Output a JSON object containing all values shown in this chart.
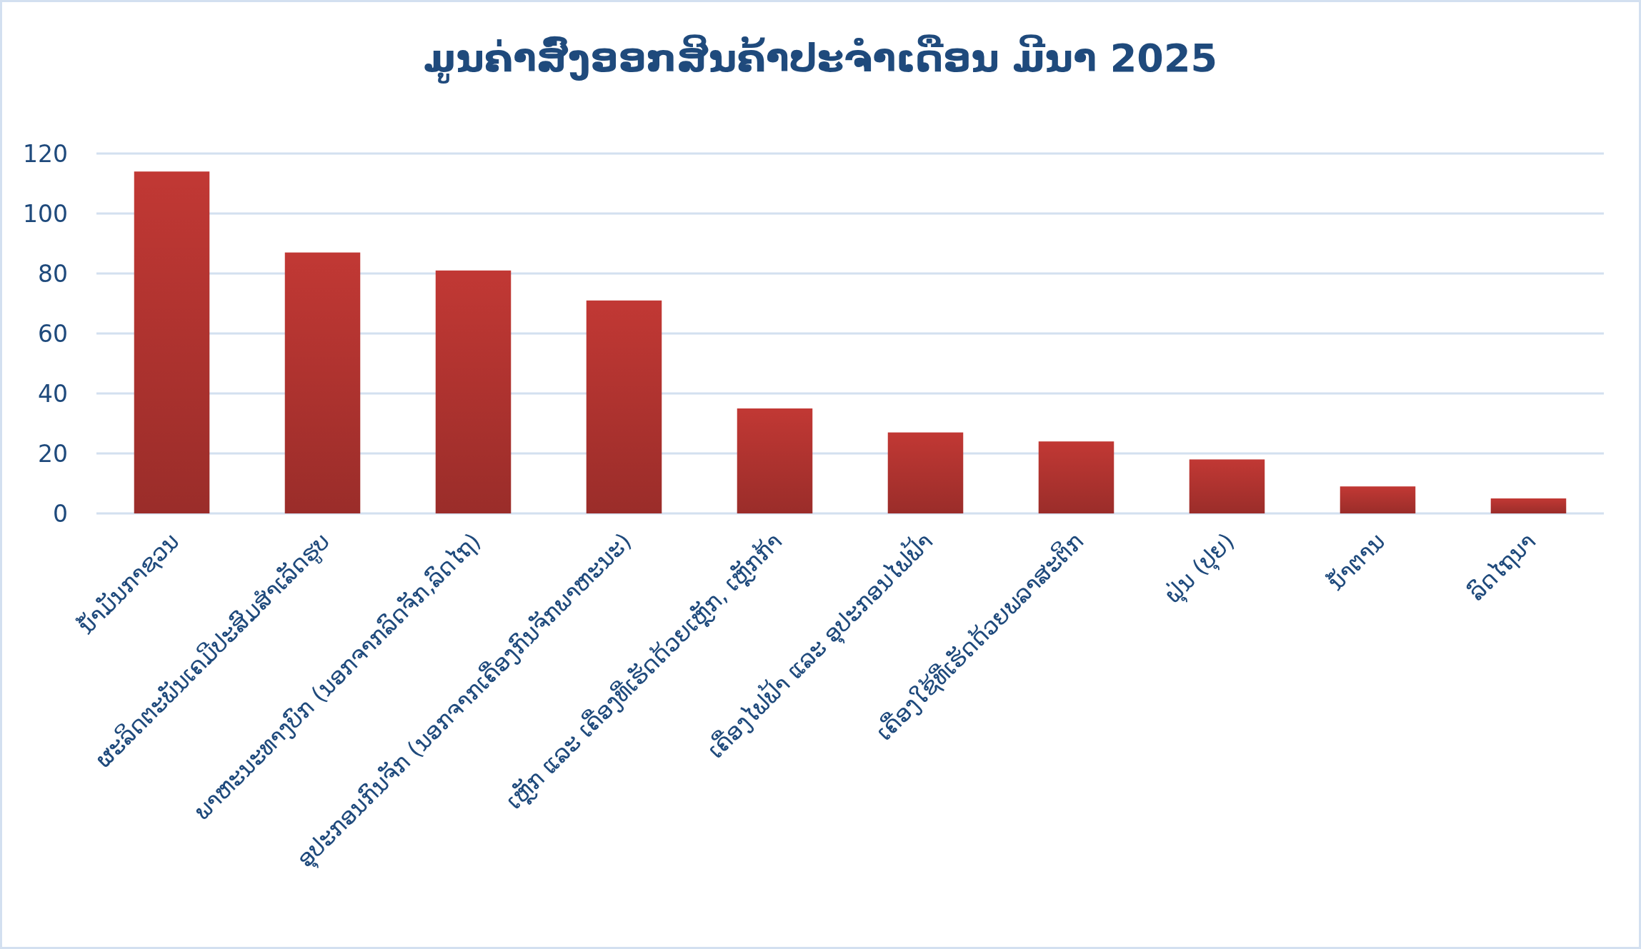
{
  "chart_data": {
    "type": "bar",
    "title": "ມູນຄ່າສົ່ງອອກສິນຄ້າປະຈຳເດືອນ ມີນາ 2025",
    "categories": [
      "ນ້ຳມັນກາຊວນ",
      "ຜະລິດຕະພັນເຄມີປະສົມສຳເລັດຮູບ",
      "ພາຫະນະທາງບົກ (ນອກຈາກລົດຈັກ,ລົດໄຖ)",
      "ອຸປະກອນກົນຈັກ (ນອກຈາກເຄື່ອງກົນຈັກພາຫະນະ)",
      "ເຫຼັກ ແລະ ເຄື່ອງທີ່ເຮັດດ້ວຍເຫຼັກ, ເຫຼັກກ້າ",
      "ເຄື່ອງໄຟຟ້າ ແລະ ອຸປະກອນໄຟຟ້າ",
      "ເຄື່ອງໃຊ້ທີ່ເຮັດດ້ວຍພລາສະຕິກ",
      "ຝຸ່ນ (ປຸຍ)",
      "ນ້ຳຕານ",
      "ລົດໄຖນາ"
    ],
    "values": [
      114,
      87,
      81,
      71,
      35,
      27,
      24,
      18,
      9,
      5
    ],
    "color": "#c13834",
    "ylim": [
      0,
      120
    ],
    "yticks": [
      0,
      20,
      40,
      60,
      80,
      100,
      120
    ],
    "grid": "y"
  }
}
